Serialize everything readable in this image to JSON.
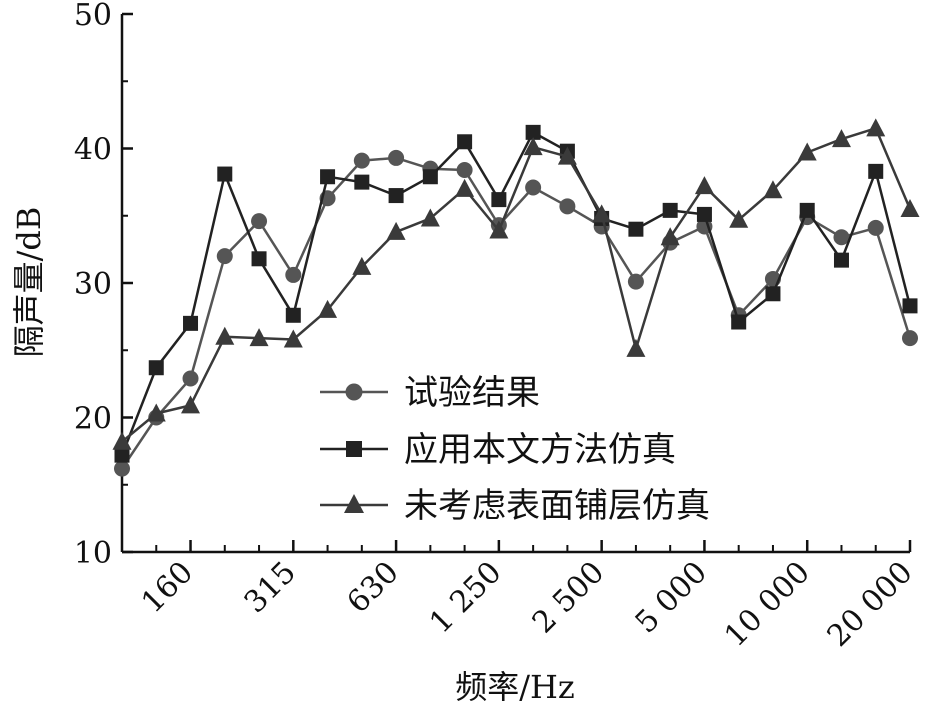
{
  "chart_data": {
    "type": "line",
    "xlabel": "频率/Hz",
    "ylabel": "隔声量/dB",
    "ylim": [
      10,
      50
    ],
    "yticks": [
      10,
      20,
      30,
      40,
      50
    ],
    "y_minor_step": 5,
    "xscale": "log-third-octave",
    "x_tick_labels": [
      "160",
      "315",
      "630",
      "1 250",
      "2 500",
      "5 000",
      "10 000",
      "20 000"
    ],
    "x": [
      100,
      125,
      160,
      200,
      250,
      315,
      400,
      500,
      630,
      800,
      1000,
      1250,
      1600,
      2000,
      2500,
      3150,
      4000,
      5000,
      6300,
      8000,
      10000,
      12500,
      16000,
      20000
    ],
    "grid": false,
    "legend_position": "lower-center",
    "series": [
      {
        "name": "试验结果",
        "marker": "circle",
        "color": "#555555",
        "values": [
          16.2,
          20.0,
          22.9,
          32.0,
          34.6,
          30.6,
          36.3,
          39.1,
          39.3,
          38.5,
          38.4,
          34.3,
          37.1,
          35.7,
          34.2,
          30.1,
          33.0,
          34.2,
          27.6,
          30.3,
          34.9,
          33.4,
          34.1,
          25.9
        ]
      },
      {
        "name": "应用本文方法仿真",
        "marker": "square",
        "color": "#222222",
        "values": [
          17.2,
          23.7,
          27.0,
          38.1,
          31.8,
          27.6,
          37.9,
          37.5,
          36.5,
          37.9,
          40.5,
          36.2,
          41.2,
          39.8,
          34.8,
          34.0,
          35.4,
          35.1,
          27.1,
          29.2,
          35.4,
          31.7,
          38.3,
          28.3
        ]
      },
      {
        "name": "未考虑表面铺层仿真",
        "marker": "triangle",
        "color": "#3a3a3a",
        "values": [
          18.2,
          20.3,
          20.9,
          26.0,
          25.9,
          25.8,
          28.0,
          31.2,
          33.8,
          34.8,
          37.0,
          33.9,
          40.1,
          39.4,
          35.1,
          25.1,
          33.4,
          37.2,
          34.7,
          36.9,
          39.7,
          40.7,
          41.5,
          35.5
        ]
      }
    ]
  }
}
